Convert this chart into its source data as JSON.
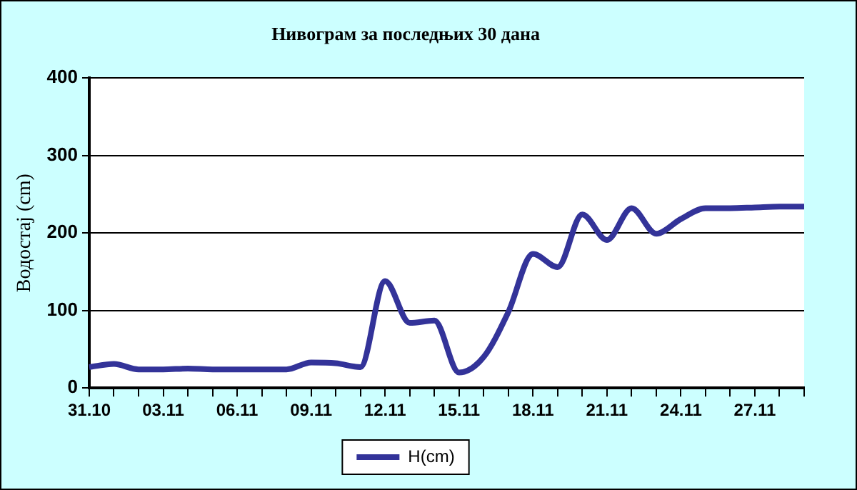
{
  "chart_data": {
    "type": "line",
    "title": "Нивограм за последњих 30 дана",
    "ylabel": "Водостај (cm)",
    "categories": [
      "31.10",
      null,
      null,
      "03.11",
      null,
      null,
      "06.11",
      null,
      null,
      "09.11",
      null,
      null,
      "12.11",
      null,
      null,
      "15.11",
      null,
      null,
      "18.11",
      null,
      null,
      "21.11",
      null,
      null,
      "24.11",
      null,
      null,
      "27.11",
      null,
      null
    ],
    "series": [
      {
        "name": "H(cm)",
        "color": "#333399",
        "values": [
          27,
          31,
          24,
          24,
          25,
          24,
          24,
          24,
          24,
          33,
          32,
          27,
          138,
          84,
          87,
          20,
          40,
          98,
          173,
          156,
          224,
          191,
          232,
          199,
          218,
          232,
          232,
          233,
          234,
          234
        ]
      }
    ],
    "ylim": [
      0,
      400
    ],
    "yticks": [
      0,
      100,
      200,
      300,
      400
    ],
    "grid": "y",
    "legend": "bottom",
    "marker": "none",
    "line_style": "solid"
  }
}
